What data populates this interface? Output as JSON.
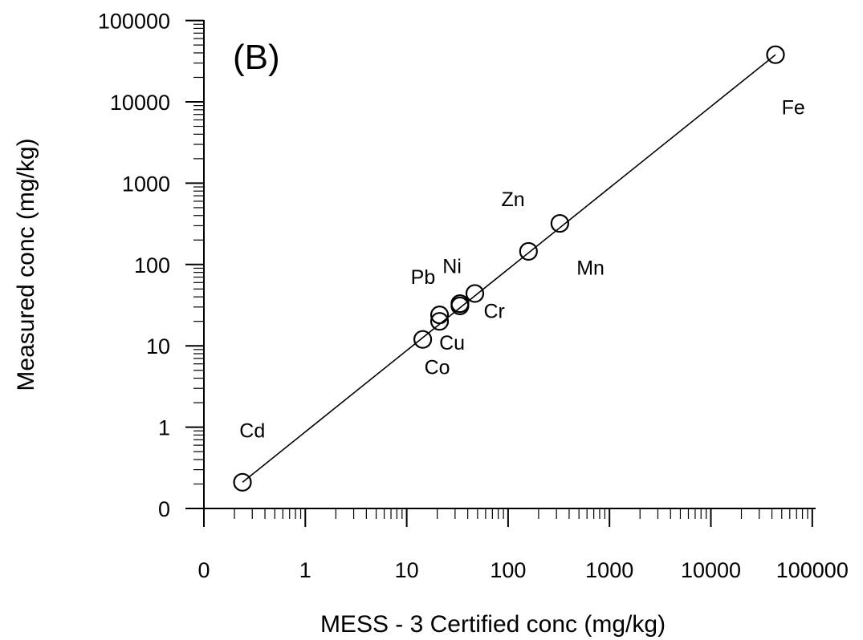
{
  "chart_data": {
    "type": "scatter",
    "title": "",
    "panel_label": "(B)",
    "xlabel": "MESS - 3 Certified conc (mg/kg)",
    "ylabel": "Measured conc (mg/kg)",
    "x_scale": "log",
    "y_scale": "log",
    "x_tick_labels": [
      "0",
      "1",
      "10",
      "100",
      "1000",
      "10000",
      "100000"
    ],
    "y_tick_labels": [
      "0",
      "1",
      "10",
      "100",
      "1000",
      "10000",
      "100000"
    ],
    "grid": false,
    "legend": "none",
    "fit_line": {
      "from": [
        0.24,
        0.21
      ],
      "to": [
        43400,
        38000
      ]
    },
    "points": [
      {
        "label": "Cd",
        "x": 0.24,
        "y": 0.21
      },
      {
        "label": "Co",
        "x": 14.4,
        "y": 12
      },
      {
        "label": "Pb",
        "x": 21.1,
        "y": 24
      },
      {
        "label": "Cu",
        "x": 21.1,
        "y": 20
      },
      {
        "label": "Ni",
        "x": 33.5,
        "y": 33
      },
      {
        "label": "Cr",
        "x": 33.5,
        "y": 31
      },
      {
        "label": "Cr",
        "x": 47,
        "y": 44
      },
      {
        "label": "Zn",
        "x": 159,
        "y": 145
      },
      {
        "label": "Mn",
        "x": 324,
        "y": 320
      },
      {
        "label": "Fe",
        "x": 43400,
        "y": 38000
      }
    ],
    "point_labels": [
      {
        "text": "Cd",
        "x": 0.3,
        "y": 0.75
      },
      {
        "text": "Co",
        "x": 20,
        "y": 4.5
      },
      {
        "text": "Cu",
        "x": 28,
        "y": 9
      },
      {
        "text": "Pb",
        "x": 14.5,
        "y": 58
      },
      {
        "text": "Ni",
        "x": 28,
        "y": 78
      },
      {
        "text": "Cr",
        "x": 73,
        "y": 22
      },
      {
        "text": "Zn",
        "x": 112,
        "y": 520
      },
      {
        "text": "Mn",
        "x": 650,
        "y": 75
      },
      {
        "text": "Fe",
        "x": 65000,
        "y": 7000
      }
    ]
  }
}
